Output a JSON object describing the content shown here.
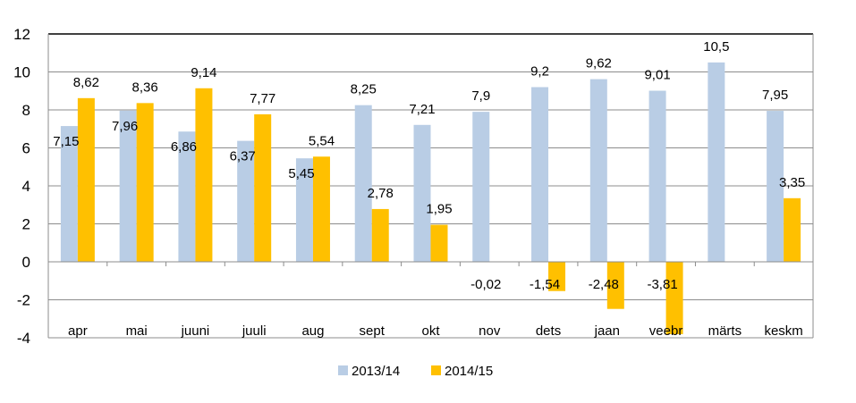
{
  "chart_data": {
    "type": "bar",
    "title": "",
    "xlabel": "",
    "ylabel": "",
    "ylim": [
      -4,
      12
    ],
    "yticks": [
      -4,
      -2,
      0,
      2,
      4,
      6,
      8,
      10,
      12
    ],
    "grid": true,
    "legend_position": "bottom",
    "categories": [
      "apr",
      "mai",
      "juuni",
      "juuli",
      "aug",
      "sept",
      "okt",
      "nov",
      "dets",
      "jaan",
      "veebr",
      "märts",
      "keskm"
    ],
    "series": [
      {
        "name": "2013/14",
        "color": "#B9CDE5",
        "values": [
          7.15,
          7.96,
          6.86,
          6.37,
          5.45,
          8.25,
          7.21,
          7.9,
          9.2,
          9.62,
          9.01,
          10.5,
          7.95
        ],
        "labels": [
          "7,15",
          "7,96",
          "6,86",
          "6,37",
          "5,45",
          "8,25",
          "7,21",
          "7,9",
          "9,2",
          "9,62",
          "9,01",
          "10,5",
          "7,95"
        ]
      },
      {
        "name": "2014/15",
        "color": "#FFC000",
        "values": [
          8.62,
          8.36,
          9.14,
          7.77,
          5.54,
          2.78,
          1.95,
          -0.02,
          -1.54,
          -2.48,
          -3.81,
          null,
          3.35
        ],
        "labels": [
          "8,62",
          "8,36",
          "9,14",
          "7,77",
          "5,54",
          "2,78",
          "1,95",
          "-0,02",
          "-1,54",
          "-2,48",
          "-3,81",
          null,
          "3,35"
        ]
      }
    ]
  }
}
